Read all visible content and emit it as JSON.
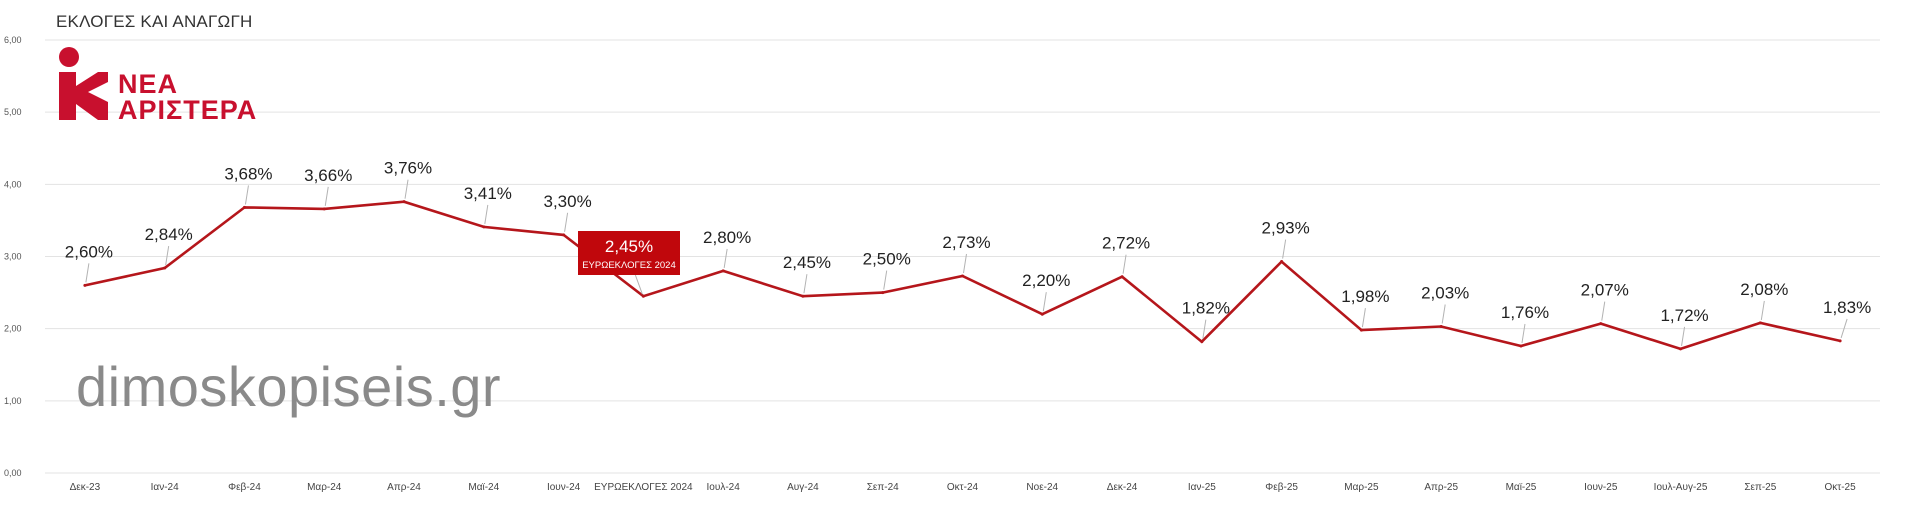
{
  "header": {
    "title": "ΕΚΛΟΓΕΣ ΚΑΙ ΑΝΑΓΩΓΗ"
  },
  "logo": {
    "line1": "ΝΕΑ",
    "line2": "ΑΡΙΣΤΕΡΑ",
    "icon": "nea-aristera-logo-icon"
  },
  "watermark": {
    "text": "dimoskopiseis.gr"
  },
  "colors": {
    "line": "#b5161b",
    "highlight_box": "#c0070c",
    "grid": "#e3e3e3",
    "logo": "#c8102e"
  },
  "chart_data": {
    "type": "line",
    "title": "ΕΚΛΟΓΕΣ ΚΑΙ ΑΝΑΓΩΓΗ",
    "xlabel": "",
    "ylabel": "",
    "ylim": [
      0,
      6
    ],
    "yticks": [
      "0,00",
      "1,00",
      "2,00",
      "3,00",
      "4,00",
      "5,00",
      "6,00"
    ],
    "grid": true,
    "legend": "none",
    "categories": [
      "Δεκ-23",
      "Ιαν-24",
      "Φεβ-24",
      "Μαρ-24",
      "Απρ-24",
      "Μαϊ-24",
      "Ιουν-24",
      "ΕΥΡΩΕΚΛΟΓΕΣ 2024",
      "Ιουλ-24",
      "Αυγ-24",
      "Σεπ-24",
      "Οκτ-24",
      "Νοε-24",
      "Δεκ-24",
      "Ιαν-25",
      "Φεβ-25",
      "Μαρ-25",
      "Απρ-25",
      "Μαϊ-25",
      "Ιουν-25",
      "Ιουλ-Αυγ-25",
      "Σεπ-25",
      "Οκτ-25"
    ],
    "values": [
      2.6,
      2.84,
      3.68,
      3.66,
      3.76,
      3.41,
      3.3,
      2.45,
      2.8,
      2.45,
      2.5,
      2.73,
      2.2,
      2.72,
      1.82,
      2.93,
      1.98,
      2.03,
      1.76,
      2.07,
      1.72,
      2.08,
      1.83
    ],
    "labels": [
      "2,60%",
      "2,84%",
      "3,68%",
      "3,66%",
      "3,76%",
      "3,41%",
      "3,30%",
      "2,45%",
      "2,80%",
      "2,45%",
      "2,50%",
      "2,73%",
      "2,20%",
      "2,72%",
      "1,82%",
      "2,93%",
      "1,98%",
      "2,03%",
      "1,76%",
      "2,07%",
      "1,72%",
      "2,08%",
      "1,83%"
    ],
    "highlight": {
      "index": 7,
      "value_label": "2,45%",
      "caption": "ΕΥΡΩΕΚΛΟΓΕΣ 2024"
    }
  }
}
